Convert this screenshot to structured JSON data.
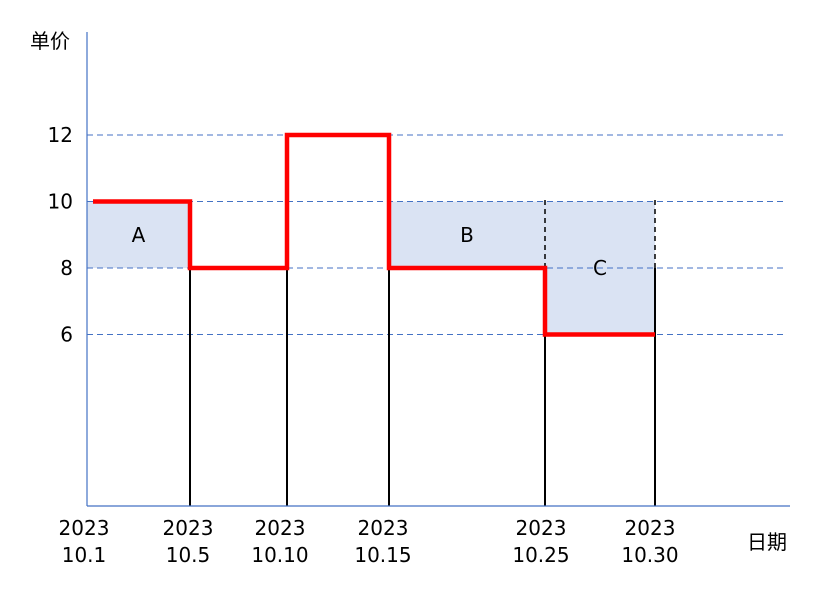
{
  "chart_data": {
    "type": "line",
    "ylabel": "单价",
    "xlabel": "日期",
    "yticks": [
      6,
      8,
      10,
      12
    ],
    "x_ticks": [
      {
        "year": "2023",
        "date": "10.1",
        "day": 1
      },
      {
        "year": "2023",
        "date": "10.5",
        "day": 5
      },
      {
        "year": "2023",
        "date": "10.10",
        "day": 10
      },
      {
        "year": "2023",
        "date": "10.15",
        "day": 15
      },
      {
        "year": "2023",
        "date": "10.25",
        "day": 25
      },
      {
        "year": "2023",
        "date": "10.30",
        "day": 30
      }
    ],
    "price_steps": [
      {
        "from_day": 1,
        "to_day": 5,
        "price": 10
      },
      {
        "from_day": 5,
        "to_day": 10,
        "price": 8
      },
      {
        "from_day": 10,
        "to_day": 15,
        "price": 12
      },
      {
        "from_day": 15,
        "to_day": 25,
        "price": 8
      },
      {
        "from_day": 25,
        "to_day": 30,
        "price": 6
      }
    ],
    "regions": [
      {
        "label": "A",
        "from_day": 1,
        "to_day": 5,
        "y_low": 8,
        "y_high": 10
      },
      {
        "label": "B",
        "from_day": 15,
        "to_day": 25,
        "y_low": 8,
        "y_high": 10
      },
      {
        "label": "C",
        "from_day": 25,
        "to_day": 30,
        "y_low": 6,
        "y_high": 10
      }
    ],
    "grid": "horizontal-dashed",
    "colors": {
      "price_line": "#ff0000",
      "region_fill": "#dae3f3",
      "grid": "#4472c4",
      "axis": "#4472c4"
    }
  }
}
